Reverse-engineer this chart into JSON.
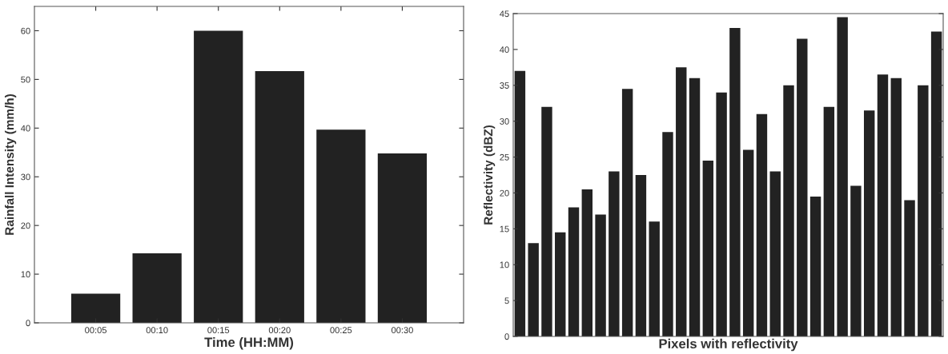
{
  "chart_data": [
    {
      "type": "bar",
      "xlabel": "Time (HH:MM)",
      "ylabel": "Rainfall Intensity (mm/h)",
      "categories": [
        "00:05",
        "00:10",
        "00:15",
        "00:20",
        "00:25",
        "00:30"
      ],
      "values": [
        6,
        14.3,
        60,
        51.7,
        39.7,
        34.8
      ],
      "color": "#222222",
      "ylim": [
        0,
        65
      ],
      "yticks": [
        0,
        10,
        20,
        30,
        40,
        50,
        60
      ],
      "grid": false,
      "legend": false
    },
    {
      "type": "bar",
      "xlabel": "Pixels with reflectivity",
      "ylabel": "Reflectivity (dBZ)",
      "categories": [
        null,
        null,
        null,
        null,
        null,
        null,
        null,
        null,
        null,
        null,
        null,
        null,
        null,
        null,
        null,
        null,
        null,
        null,
        null,
        null,
        null,
        null,
        null,
        null,
        null,
        null,
        null,
        null,
        null,
        null,
        null,
        null
      ],
      "values": [
        37,
        13,
        32,
        14.5,
        18,
        20.5,
        17,
        23,
        34.5,
        22.5,
        16,
        28.5,
        37.5,
        36,
        24.5,
        34,
        43,
        26,
        31,
        23,
        35,
        41.5,
        19.5,
        32,
        44.5,
        21,
        31.5,
        36.5,
        36,
        19,
        35,
        42.5
      ],
      "color": "#222222",
      "ylim": [
        0,
        45
      ],
      "yticks": [
        0,
        5,
        10,
        15,
        20,
        25,
        30,
        35,
        40,
        45
      ],
      "grid": false,
      "legend": false
    }
  ]
}
